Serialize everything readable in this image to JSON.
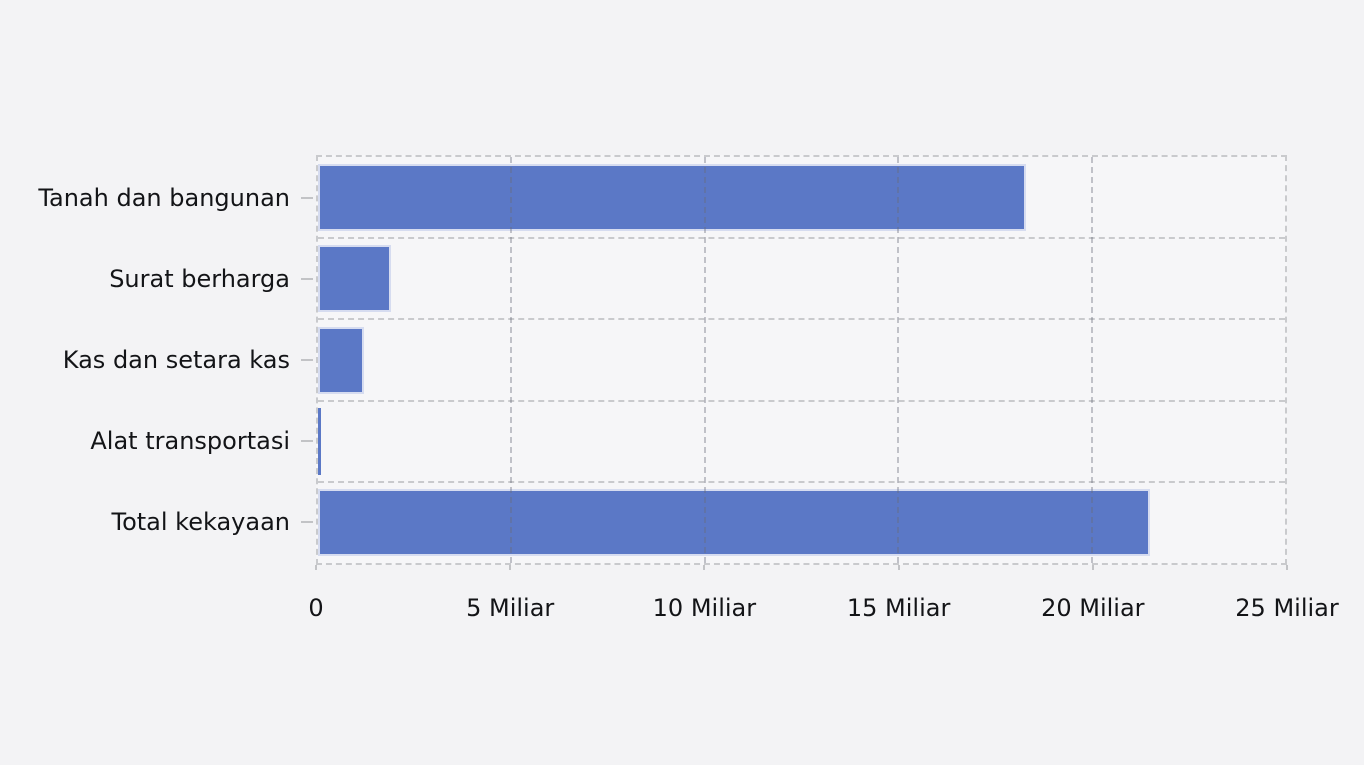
{
  "chart_data": {
    "type": "bar",
    "orientation": "horizontal",
    "title": "",
    "categories": [
      "Tanah dan bangunan",
      "Surat berharga",
      "Kas dan setara kas",
      "Alat transportasi",
      "Total kekayaan"
    ],
    "values": [
      18.3,
      1.9,
      1.2,
      0.08,
      21.5
    ],
    "unit": "Miliar",
    "xlim": [
      0,
      25
    ],
    "x_ticks": [
      0,
      5,
      10,
      15,
      20,
      25
    ],
    "x_tick_labels": [
      "0",
      "5 Miliar",
      "10 Miliar",
      "15 Miliar",
      "20 Miliar",
      "25 Miliar"
    ],
    "grid": true,
    "grid_style": "dashed",
    "legend": "none",
    "colors": {
      "background": "#f3f3f5",
      "plot_background": "#f6f6f8",
      "bar_fill": "#5b78c6",
      "bar_border": "#d6dcf0",
      "grid_line": "#c9cacd",
      "axis_text": "#131417"
    }
  }
}
